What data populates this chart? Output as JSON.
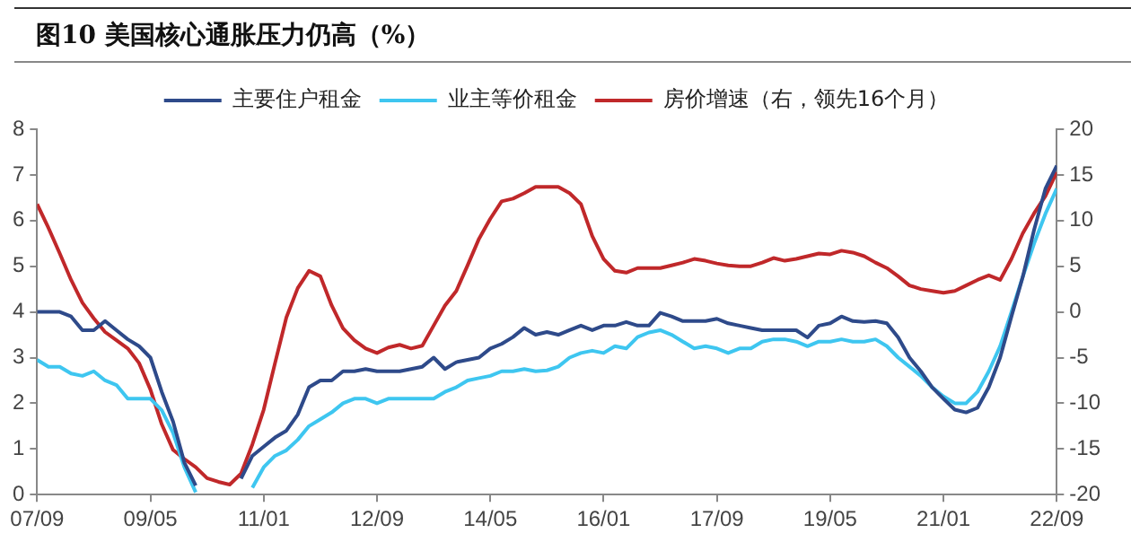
{
  "chart_data": {
    "type": "line",
    "title": "图10 美国核心通胀压力仍高（%）",
    "x": [
      "2007-09",
      "2007-11",
      "2008-01",
      "2008-03",
      "2008-05",
      "2008-07",
      "2008-09",
      "2008-11",
      "2009-01",
      "2009-03",
      "2009-05",
      "2009-07",
      "2009-09",
      "2009-11",
      "2010-01",
      "2010-03",
      "2010-05",
      "2010-07",
      "2010-09",
      "2010-11",
      "2011-01",
      "2011-03",
      "2011-05",
      "2011-07",
      "2011-09",
      "2011-11",
      "2012-01",
      "2012-03",
      "2012-05",
      "2012-07",
      "2012-09",
      "2012-11",
      "2013-01",
      "2013-03",
      "2013-05",
      "2013-07",
      "2013-09",
      "2013-11",
      "2014-01",
      "2014-03",
      "2014-05",
      "2014-07",
      "2014-09",
      "2014-11",
      "2015-01",
      "2015-03",
      "2015-05",
      "2015-07",
      "2015-09",
      "2015-11",
      "2016-01",
      "2016-03",
      "2016-05",
      "2016-07",
      "2016-09",
      "2016-11",
      "2017-01",
      "2017-03",
      "2017-05",
      "2017-07",
      "2017-09",
      "2017-11",
      "2018-01",
      "2018-03",
      "2018-05",
      "2018-07",
      "2018-09",
      "2018-11",
      "2019-01",
      "2019-03",
      "2019-05",
      "2019-07",
      "2019-09",
      "2019-11",
      "2020-01",
      "2020-03",
      "2020-05",
      "2020-07",
      "2020-09",
      "2020-11",
      "2021-01",
      "2021-03",
      "2021-05",
      "2021-07",
      "2021-09",
      "2021-11",
      "2022-01",
      "2022-03",
      "2022-05",
      "2022-07",
      "2022-09"
    ],
    "series": [
      {
        "name": "主要住户租金",
        "color": "#2e4a8a",
        "values": [
          4.0,
          4.0,
          4.0,
          3.9,
          3.6,
          3.6,
          3.8,
          3.6,
          3.4,
          3.25,
          3.0,
          2.25,
          1.6,
          0.7,
          0.2,
          null,
          null,
          null,
          0.35,
          0.85,
          1.05,
          1.25,
          1.4,
          1.75,
          2.35,
          2.5,
          2.5,
          2.7,
          2.7,
          2.75,
          2.7,
          2.7,
          2.7,
          2.75,
          2.8,
          3.0,
          2.75,
          2.9,
          2.95,
          3.0,
          3.2,
          3.3,
          3.45,
          3.65,
          3.5,
          3.56,
          3.5,
          3.6,
          3.7,
          3.6,
          3.7,
          3.7,
          3.78,
          3.7,
          3.7,
          3.98,
          3.9,
          3.8,
          3.8,
          3.8,
          3.85,
          3.75,
          3.7,
          3.65,
          3.6,
          3.6,
          3.6,
          3.6,
          3.44,
          3.7,
          3.75,
          3.9,
          3.8,
          3.78,
          3.8,
          3.75,
          3.44,
          3.0,
          2.7,
          2.35,
          2.1,
          1.86,
          1.8,
          1.9,
          2.35,
          3.0,
          3.9,
          4.77,
          5.8,
          6.7,
          7.2
        ]
      },
      {
        "name": "业主等价租金",
        "color": "#3ec6f0",
        "values": [
          2.95,
          2.8,
          2.8,
          2.65,
          2.6,
          2.7,
          2.5,
          2.4,
          2.1,
          2.1,
          2.1,
          1.85,
          1.35,
          0.6,
          0.05,
          null,
          null,
          null,
          null,
          0.15,
          0.6,
          0.85,
          0.97,
          1.2,
          1.5,
          1.65,
          1.8,
          2.0,
          2.1,
          2.1,
          2.0,
          2.1,
          2.1,
          2.1,
          2.1,
          2.1,
          2.25,
          2.35,
          2.5,
          2.55,
          2.6,
          2.7,
          2.7,
          2.75,
          2.7,
          2.72,
          2.8,
          3.0,
          3.1,
          3.15,
          3.1,
          3.25,
          3.2,
          3.45,
          3.55,
          3.6,
          3.5,
          3.35,
          3.2,
          3.25,
          3.2,
          3.1,
          3.2,
          3.2,
          3.35,
          3.4,
          3.4,
          3.35,
          3.25,
          3.35,
          3.35,
          3.4,
          3.35,
          3.35,
          3.4,
          3.25,
          3.0,
          2.8,
          2.6,
          2.35,
          2.15,
          2.0,
          2.0,
          2.25,
          2.7,
          3.25,
          4.0,
          4.77,
          5.5,
          6.15,
          6.7
        ]
      },
      {
        "name": "房价增速（右，领先16个月）",
        "color": "#c0282a",
        "axis": "y2",
        "values": [
          11.8,
          9.2,
          6.4,
          3.5,
          1.0,
          -0.7,
          -2.2,
          -3.1,
          -4.0,
          -5.6,
          -8.5,
          -12.3,
          -15.1,
          -16.1,
          -17,
          -18.2,
          -18.6,
          -18.9,
          -17.7,
          -14.5,
          -10.7,
          -5.6,
          -0.6,
          2.6,
          4.5,
          3.9,
          0.7,
          -1.8,
          -3.1,
          -4.0,
          -4.5,
          -3.9,
          -3.6,
          -4.0,
          -3.7,
          -1.5,
          0.7,
          2.3,
          5.1,
          8.0,
          10.2,
          12.1,
          12.4,
          13.0,
          13.7,
          13.7,
          13.7,
          13.0,
          11.8,
          8.3,
          5.8,
          4.5,
          4.3,
          4.8,
          4.8,
          4.8,
          5.1,
          5.4,
          5.8,
          5.6,
          5.3,
          5.1,
          5.0,
          5.0,
          5.4,
          5.9,
          5.6,
          5.8,
          6.1,
          6.4,
          6.3,
          6.7,
          6.5,
          6.1,
          5.4,
          4.8,
          3.9,
          2.9,
          2.5,
          2.3,
          2.1,
          2.3,
          2.9,
          3.5,
          4.0,
          3.5,
          5.8,
          8.6,
          10.8,
          12.7,
          15.3
        ]
      }
    ],
    "xlim": [
      "2007-09",
      "2022-09"
    ],
    "xticks": [
      {
        "value": "2007-09",
        "label": "07/09"
      },
      {
        "value": "2009-05",
        "label": "09/05"
      },
      {
        "value": "2011-01",
        "label": "11/01"
      },
      {
        "value": "2012-09",
        "label": "12/09"
      },
      {
        "value": "2014-05",
        "label": "14/05"
      },
      {
        "value": "2016-01",
        "label": "16/01"
      },
      {
        "value": "2017-09",
        "label": "17/09"
      },
      {
        "value": "2019-05",
        "label": "19/05"
      },
      {
        "value": "2021-01",
        "label": "21/01"
      },
      {
        "value": "2022-09",
        "label": "22/09"
      }
    ],
    "ylim": [
      0,
      8
    ],
    "yticks": [
      0,
      1,
      2,
      3,
      4,
      5,
      6,
      7,
      8
    ],
    "y2lim": [
      -20,
      20
    ],
    "y2ticks": [
      -20,
      -15,
      -10,
      -5,
      0,
      5,
      10,
      15,
      20
    ],
    "grid": false,
    "legend": "top",
    "marker": "none"
  }
}
